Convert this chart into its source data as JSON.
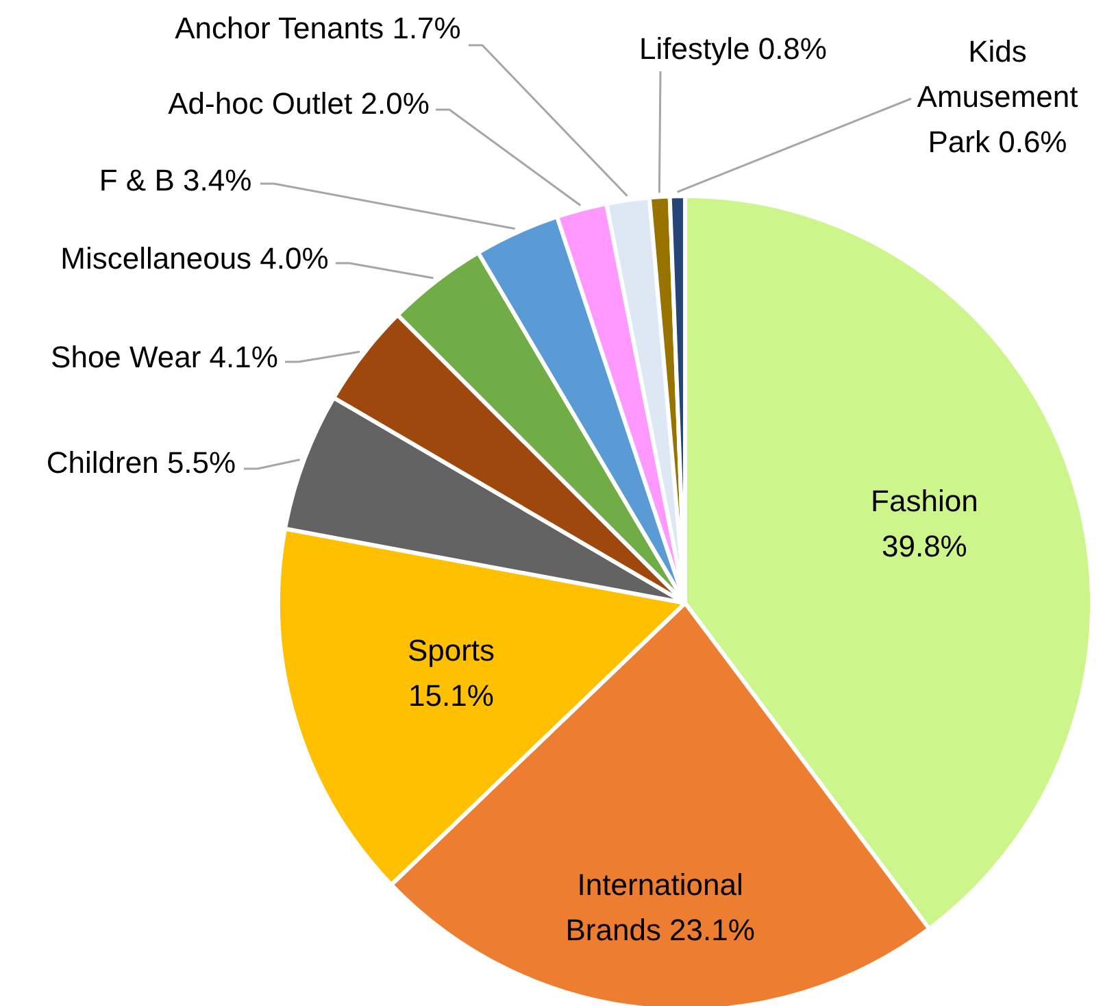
{
  "chart_data": {
    "type": "pie",
    "categories": [
      "Fashion",
      "International Brands",
      "Sports",
      "Children",
      "Shoe Wear",
      "Miscellaneous",
      "F & B",
      "Ad-hoc Outlet",
      "Anchor Tenants",
      "Lifestyle",
      "Kids Amusement Park"
    ],
    "values": [
      39.8,
      23.1,
      15.1,
      5.5,
      4.1,
      4.0,
      3.4,
      2.0,
      1.7,
      0.8,
      0.6
    ],
    "value_labels": [
      "39.8%",
      "23.1%",
      "15.1%",
      "5.5%",
      "4.1%",
      "4.0%",
      "3.4%",
      "2.0%",
      "1.7%",
      "0.8%",
      "0.6%"
    ],
    "colors": [
      "#ccf58c",
      "#ed7d31",
      "#ffc000",
      "#636363",
      "#9e480e",
      "#70ad47",
      "#5b9bd5",
      "#ff99ff",
      "#dde8f4",
      "#997300",
      "#264478"
    ]
  }
}
